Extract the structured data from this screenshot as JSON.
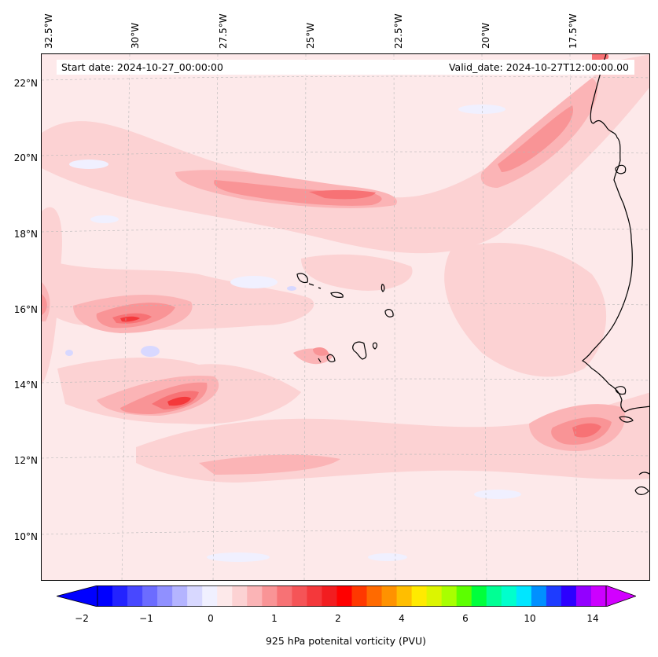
{
  "map": {
    "lon_labels": [
      "32.5°W",
      "30°W",
      "27.5°W",
      "25°W",
      "22.5°W",
      "20°W",
      "17.5°W"
    ],
    "lat_labels": [
      "22°N",
      "20°N",
      "18°N",
      "16°N",
      "14°N",
      "12°N",
      "10°N"
    ],
    "start_date": "Start date: 2024-10-27_00:00:00",
    "valid_date": "Valid_date: 2024-10-27T12:00:00.00",
    "variable": "925 hPa potenital vorticity (PVU)"
  },
  "colorbar": {
    "ticks": [
      "−2",
      "−1",
      "0",
      "1",
      "2",
      "4",
      "6",
      "10",
      "14"
    ],
    "colors": [
      "#0000ff",
      "#2323ff",
      "#4848ff",
      "#6c6cff",
      "#9090ff",
      "#b4b4ff",
      "#d8d8ff",
      "#f0f0ff",
      "#fde9ea",
      "#fcd2d3",
      "#fbb4b6",
      "#f99496",
      "#f77275",
      "#f55457",
      "#f4383b",
      "#f21d20",
      "#ff0000",
      "#ff3800",
      "#ff6a00",
      "#ff9200",
      "#ffbe00",
      "#ffea00",
      "#dcf500",
      "#a8ff00",
      "#5cff00",
      "#00ff3c",
      "#00ff94",
      "#00ffcc",
      "#00e6ff",
      "#0090ff",
      "#1e3cff",
      "#2c00ff",
      "#9300ff",
      "#cc00ff"
    ],
    "under_color": "#0000ff",
    "over_color": "#d200ff"
  }
}
